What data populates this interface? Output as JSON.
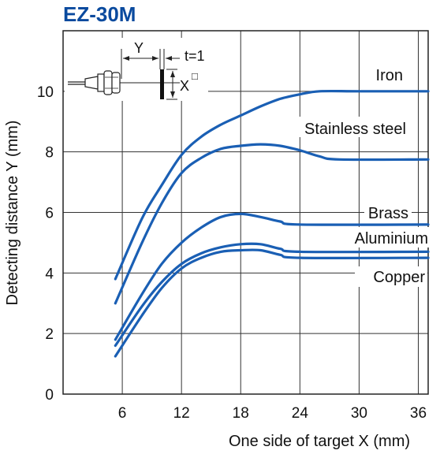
{
  "chart_data": {
    "type": "line",
    "title": "EZ-30M",
    "xlabel": "One side of target X (mm)",
    "ylabel": "Detecting distance Y (mm)",
    "xlim": [
      0,
      37
    ],
    "ylim": [
      0,
      12
    ],
    "xticks": [
      6,
      12,
      18,
      24,
      30,
      36
    ],
    "yticks": [
      0,
      2,
      4,
      6,
      8,
      10
    ],
    "grid": true,
    "series": [
      {
        "name": "Iron",
        "color": "#1a5fb4",
        "points": [
          [
            5.3,
            3.8
          ],
          [
            8,
            5.8
          ],
          [
            10,
            6.9
          ],
          [
            12,
            7.9
          ],
          [
            14,
            8.5
          ],
          [
            16,
            8.9
          ],
          [
            18,
            9.2
          ],
          [
            20,
            9.5
          ],
          [
            22,
            9.75
          ],
          [
            24,
            9.9
          ],
          [
            26,
            10.0
          ],
          [
            30,
            10.0
          ],
          [
            37,
            10.0
          ]
        ]
      },
      {
        "name": "Stainless steel",
        "color": "#1a5fb4",
        "points": [
          [
            5.3,
            3.0
          ],
          [
            8,
            5.0
          ],
          [
            10,
            6.3
          ],
          [
            12,
            7.3
          ],
          [
            14,
            7.8
          ],
          [
            16,
            8.1
          ],
          [
            18,
            8.2
          ],
          [
            20,
            8.25
          ],
          [
            22,
            8.2
          ],
          [
            24,
            8.05
          ],
          [
            26,
            7.85
          ],
          [
            28,
            7.75
          ],
          [
            37,
            7.75
          ]
        ]
      },
      {
        "name": "Brass",
        "color": "#1a5fb4",
        "points": [
          [
            5.3,
            1.8
          ],
          [
            8,
            3.3
          ],
          [
            10,
            4.3
          ],
          [
            12,
            5.0
          ],
          [
            14,
            5.5
          ],
          [
            16,
            5.85
          ],
          [
            18,
            5.95
          ],
          [
            20,
            5.85
          ],
          [
            22,
            5.7
          ],
          [
            24,
            5.6
          ],
          [
            37,
            5.6
          ]
        ]
      },
      {
        "name": "Aluminium",
        "color": "#1a5fb4",
        "points": [
          [
            5.3,
            1.6
          ],
          [
            8,
            2.9
          ],
          [
            10,
            3.7
          ],
          [
            12,
            4.3
          ],
          [
            14,
            4.65
          ],
          [
            16,
            4.85
          ],
          [
            18,
            4.95
          ],
          [
            20,
            4.95
          ],
          [
            22,
            4.8
          ],
          [
            24,
            4.7
          ],
          [
            37,
            4.7
          ]
        ]
      },
      {
        "name": "Copper",
        "color": "#1a5fb4",
        "points": [
          [
            5.3,
            1.25
          ],
          [
            8,
            2.6
          ],
          [
            10,
            3.5
          ],
          [
            12,
            4.15
          ],
          [
            14,
            4.5
          ],
          [
            16,
            4.7
          ],
          [
            18,
            4.75
          ],
          [
            20,
            4.75
          ],
          [
            22,
            4.6
          ],
          [
            24,
            4.5
          ],
          [
            37,
            4.5
          ]
        ]
      }
    ],
    "inset": {
      "y_label": "Y",
      "t_label": "t=1",
      "x_label": "X",
      "square_symbol": "□"
    }
  }
}
